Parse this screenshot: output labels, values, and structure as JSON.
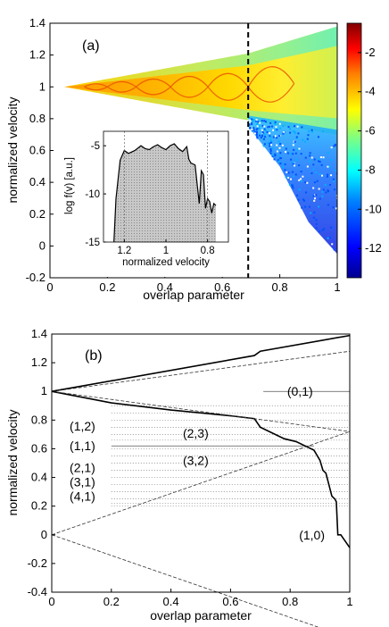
{
  "chart_data": [
    {
      "type": "heatmap",
      "panel_label": "(a)",
      "xlabel": "overlap parameter",
      "ylabel": "normalized velocity",
      "xlim": [
        0,
        1
      ],
      "ylim": [
        -0.2,
        1.4
      ],
      "xticks": [
        "0",
        "0.2",
        "0.4",
        "0.6",
        "0.8",
        "1"
      ],
      "yticks": [
        "-0.2",
        "0",
        "0.2",
        "0.4",
        "0.6",
        "0.8",
        "1",
        "1.2",
        "1.4"
      ],
      "dashed_vertical_line_x": 0.69,
      "colorbar": {
        "ticks": [
          "-2",
          "-4",
          "-6",
          "-8",
          "-10",
          "-12"
        ],
        "tick_values": [
          -2,
          -4,
          -6,
          -8,
          -10,
          -12
        ],
        "range": [
          -13.5,
          -0.5
        ],
        "colormap": [
          "#00008f",
          "#0000ff",
          "#0080ff",
          "#00ffff",
          "#80ff80",
          "#ffff00",
          "#ff8000",
          "#ff0000",
          "#800000"
        ]
      },
      "bands": [
        {
          "x": [
            0.05,
            0.69,
            1.0
          ],
          "upper": [
            1.0,
            1.21,
            1.38
          ],
          "lower": [
            1.0,
            0.79,
            0.7
          ]
        },
        {
          "note": "lower scattered tail",
          "x": [
            0.69,
            0.8,
            0.9,
            1.0
          ],
          "lower": [
            0.75,
            0.5,
            0.15,
            -0.05
          ]
        }
      ],
      "inset": {
        "xlabel": "normalized velocity",
        "ylabel": "log f(v) [a.u.]",
        "xticks": [
          "1.2",
          "1",
          "0.8"
        ],
        "yticks": [
          "-5",
          "-10",
          "-15"
        ],
        "xlim": [
          1.3,
          0.7
        ],
        "ylim": [
          -15,
          -3.5
        ],
        "curve": {
          "x": [
            1.25,
            1.24,
            1.22,
            1.2,
            1.18,
            1.15,
            1.12,
            1.1,
            1.08,
            1.06,
            1.04,
            1.02,
            1.0,
            0.98,
            0.96,
            0.94,
            0.92,
            0.9,
            0.89,
            0.88,
            0.86,
            0.84,
            0.83,
            0.82,
            0.81,
            0.8,
            0.79,
            0.78,
            0.77,
            0.76
          ],
          "y": [
            -15,
            -10.5,
            -6.5,
            -5.5,
            -5.8,
            -5.5,
            -5.0,
            -5.3,
            -5.4,
            -5.1,
            -4.9,
            -5.2,
            -5.4,
            -5.0,
            -4.8,
            -5.3,
            -5.6,
            -5.1,
            -6.4,
            -6.8,
            -7.0,
            -11.0,
            -7.6,
            -8.0,
            -11.5,
            -10.5,
            -10.8,
            -12.0,
            -11.0,
            -11.2
          ]
        }
      }
    },
    {
      "type": "line",
      "panel_label": "(b)",
      "xlabel": "overlap parameter",
      "ylabel": "normalized velocity",
      "xlim": [
        0,
        1
      ],
      "ylim": [
        -0.4,
        1.4
      ],
      "xticks": [
        "0",
        "0.2",
        "0.4",
        "0.6",
        "0.8",
        "1"
      ],
      "yticks": [
        "-0.4",
        "-0.2",
        "0",
        "0.2",
        "0.4",
        "0.6",
        "0.8",
        "1",
        "1.2",
        "1.4"
      ],
      "series": [
        {
          "style": "solid",
          "x": [
            0,
            0.68,
            0.7,
            1.0
          ],
          "y": [
            1.0,
            1.25,
            1.28,
            1.39
          ]
        },
        {
          "style": "solid",
          "x": [
            0,
            0.2,
            0.4,
            0.6,
            0.68,
            0.7,
            0.78,
            0.82,
            0.86,
            0.88,
            0.9,
            0.91,
            0.92,
            0.93,
            0.94,
            0.945,
            0.95,
            0.955,
            0.96,
            0.97,
            1.0
          ],
          "y": [
            1.0,
            0.92,
            0.87,
            0.83,
            0.81,
            0.75,
            0.67,
            0.65,
            0.61,
            0.59,
            0.52,
            0.45,
            0.43,
            0.35,
            0.27,
            0.26,
            0.25,
            0.23,
            0.0,
            0.0,
            -0.09
          ]
        },
        {
          "style": "dashed",
          "x": [
            0,
            1
          ],
          "y": [
            1.0,
            1.28
          ]
        },
        {
          "style": "dashed",
          "x": [
            0,
            1
          ],
          "y": [
            0.0,
            0.72
          ]
        },
        {
          "style": "dashed",
          "x": [
            0,
            1
          ],
          "y": [
            0.0,
            -0.72
          ]
        },
        {
          "style": "dashed",
          "x": [
            0,
            1
          ],
          "y": [
            1.0,
            0.72
          ]
        }
      ],
      "dotted_levels": {
        "x_start": 0.2,
        "x_end": 1.0,
        "y": [
          0.9,
          0.85,
          0.8,
          0.75,
          0.7,
          0.66,
          0.6,
          0.55,
          0.5,
          0.45,
          0.4,
          0.35,
          0.3,
          0.25,
          0.22,
          0.2
        ]
      },
      "solid_levels": [
        {
          "y": 1.0,
          "x_start": 0.71,
          "x_end": 1.0
        },
        {
          "y": 0.62,
          "x_start": 0.2,
          "x_end": 0.88
        }
      ],
      "annotations": [
        {
          "text": "(0,1)",
          "x": 0.79,
          "y": 1.0
        },
        {
          "text": "(1,2)",
          "x": 0.06,
          "y": 0.76
        },
        {
          "text": "(2,3)",
          "x": 0.44,
          "y": 0.71
        },
        {
          "text": "(1,1)",
          "x": 0.06,
          "y": 0.62
        },
        {
          "text": "(3,2)",
          "x": 0.44,
          "y": 0.52
        },
        {
          "text": "(2,1)",
          "x": 0.06,
          "y": 0.47
        },
        {
          "text": "(3,1)",
          "x": 0.06,
          "y": 0.37
        },
        {
          "text": "(4,1)",
          "x": 0.06,
          "y": 0.27
        },
        {
          "text": "(1,0)",
          "x": 0.83,
          "y": 0.0
        }
      ]
    }
  ]
}
